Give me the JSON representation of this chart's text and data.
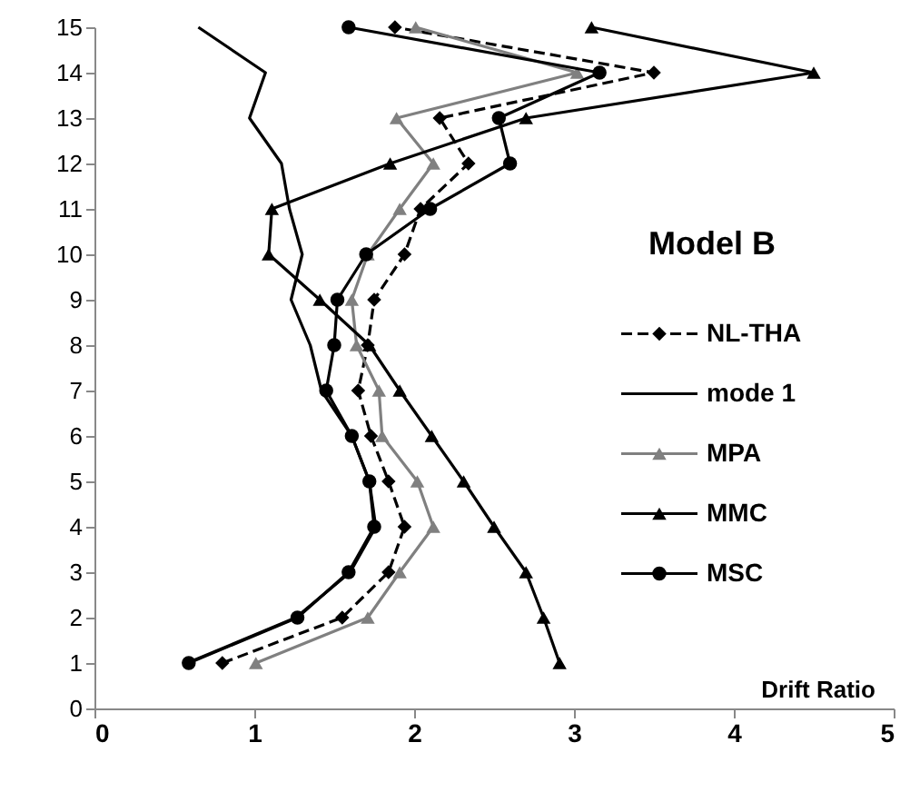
{
  "chart_data": {
    "type": "line",
    "title": "Model B",
    "xlabel": "Drift Ratio",
    "xlim": [
      0,
      5
    ],
    "xticks": [
      0,
      1,
      2,
      3,
      4,
      5
    ],
    "ylim": [
      0,
      15
    ],
    "yticks": [
      0,
      1,
      2,
      3,
      4,
      5,
      6,
      7,
      8,
      9,
      10,
      11,
      12,
      13,
      14,
      15
    ],
    "grid": false,
    "legend": "right",
    "series": [
      {
        "name": "NL-THA",
        "color": "#000000",
        "marker": "diamond",
        "line_style": "dashed",
        "x": [
          0.8,
          1.55,
          1.84,
          1.94,
          1.84,
          1.73,
          1.65,
          1.71,
          1.75,
          1.94,
          2.04,
          2.34,
          2.16,
          3.5,
          1.88
        ],
        "values": [
          1,
          2,
          3,
          4,
          5,
          6,
          7,
          8,
          9,
          10,
          11,
          12,
          13,
          14,
          15
        ]
      },
      {
        "name": "mode 1",
        "color": "#000000",
        "marker": "none",
        "line_style": "solid",
        "x": [
          0.58,
          1.26,
          1.6,
          1.76,
          1.72,
          1.61,
          1.42,
          1.35,
          1.23,
          1.3,
          1.22,
          1.17,
          0.97,
          1.07,
          0.65
        ],
        "values": [
          1,
          2,
          3,
          4,
          5,
          6,
          7,
          8,
          9,
          10,
          11,
          12,
          13,
          14,
          15
        ]
      },
      {
        "name": "MPA",
        "color": "#808080",
        "marker": "triangle",
        "line_style": "solid",
        "x": [
          1.01,
          1.71,
          1.91,
          2.12,
          2.02,
          1.8,
          1.78,
          1.64,
          1.61,
          1.71,
          1.91,
          2.12,
          1.89,
          3.02,
          2.01
        ],
        "values": [
          1,
          2,
          3,
          4,
          5,
          6,
          7,
          8,
          9,
          10,
          11,
          12,
          13,
          14,
          15
        ]
      },
      {
        "name": "MMC",
        "color": "#000000",
        "marker": "triangle",
        "line_style": "solid",
        "x": [
          2.91,
          2.81,
          2.7,
          2.5,
          2.31,
          2.11,
          1.91,
          1.72,
          1.41,
          1.09,
          1.11,
          1.85,
          2.7,
          4.5,
          3.11
        ],
        "values": [
          1,
          2,
          3,
          4,
          5,
          6,
          7,
          8,
          9,
          10,
          11,
          12,
          13,
          14,
          15
        ]
      },
      {
        "name": "MSC",
        "color": "#000000",
        "marker": "circle",
        "line_style": "solid",
        "x": [
          0.59,
          1.27,
          1.59,
          1.75,
          1.72,
          1.61,
          1.45,
          1.5,
          1.52,
          1.7,
          2.1,
          2.6,
          2.53,
          3.16,
          1.59
        ],
        "values": [
          1,
          2,
          3,
          4,
          5,
          6,
          7,
          8,
          9,
          10,
          11,
          12,
          13,
          14,
          15
        ]
      }
    ]
  }
}
